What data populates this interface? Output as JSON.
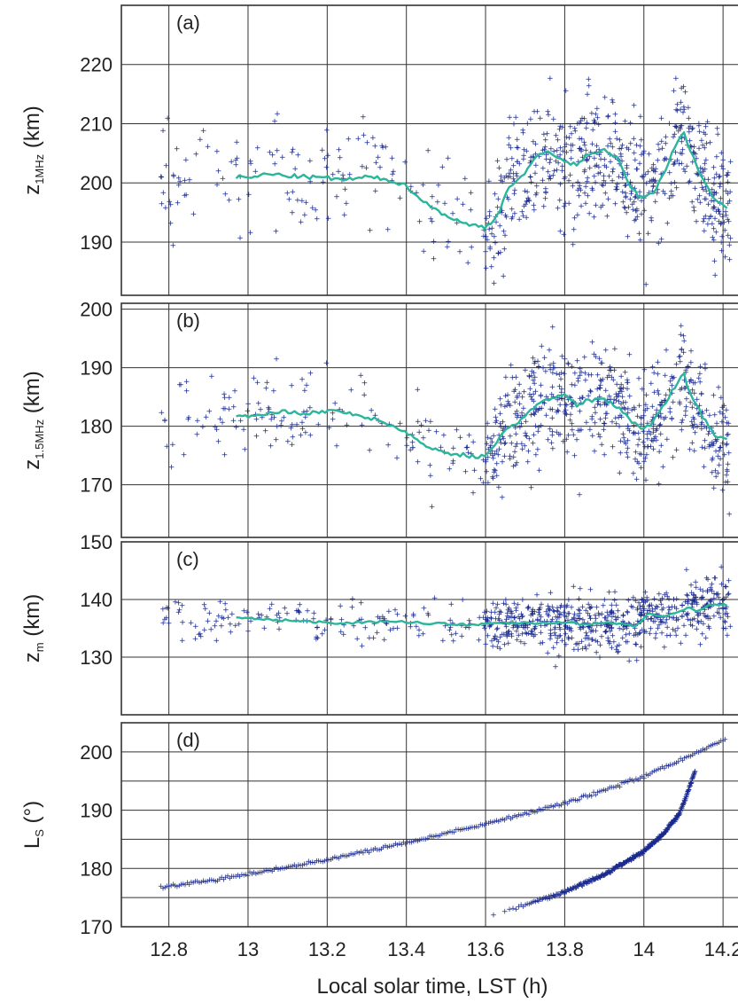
{
  "colors": {
    "scatter": "#1a2a8f",
    "line": "#2bb59a",
    "grid": "#333333",
    "frame": "#333333"
  },
  "xlabel": "Local solar time, LST (h)",
  "x_ticks": [
    "12.8",
    "13",
    "13.2",
    "13.4",
    "13.6",
    "13.8",
    "14",
    "14.2"
  ],
  "chart_data": [
    {
      "type": "scatter",
      "panel": "(a)",
      "ylabel_main": "z",
      "ylabel_sub": "1MHz",
      "ylabel_unit": " (km)",
      "xlim": [
        12.68,
        14.24
      ],
      "ylim": [
        181,
        230
      ],
      "y_ticks": [
        "190",
        "200",
        "210",
        "220"
      ],
      "grid": true,
      "series": [
        {
          "kind": "running-mean",
          "x": [
            12.97,
            13.0,
            13.05,
            13.1,
            13.15,
            13.2,
            13.25,
            13.3,
            13.35,
            13.4,
            13.45,
            13.5,
            13.55,
            13.6,
            13.63,
            13.66,
            13.7,
            13.73,
            13.76,
            13.8,
            13.83,
            13.86,
            13.9,
            13.93,
            13.96,
            13.99,
            14.02,
            14.05,
            14.08,
            14.1,
            14.12,
            14.15,
            14.18,
            14.21
          ],
          "y": [
            201,
            200.8,
            201.5,
            201.2,
            201.0,
            200.8,
            200.5,
            201.0,
            200.6,
            199.5,
            196.5,
            194.5,
            193.0,
            192.5,
            194.5,
            199.5,
            201.5,
            204.5,
            205.5,
            203.5,
            203.0,
            205.0,
            205.5,
            204.5,
            200.0,
            197.5,
            198.0,
            201.5,
            206.5,
            208.5,
            205.0,
            200.5,
            197.0,
            196.0
          ]
        }
      ]
    },
    {
      "type": "scatter",
      "panel": "(b)",
      "ylabel_main": "z",
      "ylabel_sub": "1.5MHz",
      "ylabel_unit": " (km)",
      "xlim": [
        12.68,
        14.24
      ],
      "ylim": [
        161,
        201
      ],
      "y_ticks": [
        "170",
        "180",
        "190",
        "200"
      ],
      "grid": true,
      "series": [
        {
          "kind": "running-mean",
          "x": [
            12.97,
            13.0,
            13.05,
            13.1,
            13.15,
            13.2,
            13.25,
            13.3,
            13.35,
            13.4,
            13.45,
            13.5,
            13.55,
            13.6,
            13.63,
            13.66,
            13.7,
            13.73,
            13.76,
            13.8,
            13.83,
            13.86,
            13.9,
            13.93,
            13.96,
            13.99,
            14.02,
            14.05,
            14.08,
            14.1,
            14.12,
            14.15,
            14.18,
            14.21
          ],
          "y": [
            182,
            181.8,
            182.3,
            182.5,
            182.2,
            182.6,
            182.4,
            181.5,
            180.5,
            179.0,
            176.5,
            175.5,
            175.0,
            174.8,
            177.5,
            180.0,
            181.5,
            184.0,
            184.5,
            185.5,
            183.5,
            184.5,
            184.5,
            183.5,
            181.5,
            179.5,
            180.5,
            183.5,
            187.0,
            189.0,
            185.0,
            181.5,
            178.5,
            178.0
          ]
        }
      ]
    },
    {
      "type": "scatter",
      "panel": "(c)",
      "ylabel_main": "z",
      "ylabel_sub": "m",
      "ylabel_unit": " (km)",
      "xlim": [
        12.68,
        14.24
      ],
      "ylim": [
        120,
        150
      ],
      "y_ticks": [
        "130",
        "140",
        "150"
      ],
      "grid": true,
      "series": [
        {
          "kind": "running-mean",
          "x": [
            12.97,
            13.0,
            13.05,
            13.1,
            13.15,
            13.2,
            13.25,
            13.3,
            13.35,
            13.4,
            13.45,
            13.5,
            13.55,
            13.6,
            13.65,
            13.7,
            13.75,
            13.8,
            13.85,
            13.9,
            13.95,
            13.98,
            14.01,
            14.05,
            14.08,
            14.11,
            14.14,
            14.17,
            14.21
          ],
          "y": [
            136.8,
            136.7,
            136.5,
            136.4,
            136.2,
            136.0,
            135.9,
            136.0,
            136.3,
            136.1,
            135.9,
            135.8,
            135.6,
            135.8,
            135.9,
            136.0,
            135.9,
            136.1,
            135.6,
            136.0,
            135.8,
            135.5,
            137.5,
            137.2,
            137.8,
            138.5,
            138.0,
            139.2,
            139.0
          ]
        }
      ]
    },
    {
      "type": "scatter",
      "panel": "(d)",
      "ylabel_main": "L",
      "ylabel_sub": "S",
      "ylabel_unit": " (°)",
      "xlim": [
        12.68,
        14.24
      ],
      "ylim": [
        170,
        205
      ],
      "y_ticks": [
        "170",
        "180",
        "190",
        "200"
      ],
      "grid": true,
      "series": [
        {
          "kind": "orbit-track-1",
          "x_range": [
            12.78,
            14.21
          ],
          "y_at_x": [
            [
              12.78,
              176.8
            ],
            [
              13.0,
              179.0
            ],
            [
              13.2,
              181.5
            ],
            [
              13.4,
              184.5
            ],
            [
              13.6,
              187.7
            ],
            [
              13.8,
              191.2
            ],
            [
              14.0,
              195.8
            ],
            [
              14.21,
              202.3
            ]
          ]
        },
        {
          "kind": "orbit-track-2",
          "x_range": [
            13.62,
            14.13
          ],
          "y_at_x": [
            [
              13.62,
              172.0
            ],
            [
              13.8,
              176.0
            ],
            [
              13.9,
              179.0
            ],
            [
              14.0,
              183.0
            ],
            [
              14.05,
              186.0
            ],
            [
              14.09,
              189.5
            ],
            [
              14.11,
              193.0
            ],
            [
              14.13,
              197.0
            ]
          ]
        }
      ]
    }
  ]
}
